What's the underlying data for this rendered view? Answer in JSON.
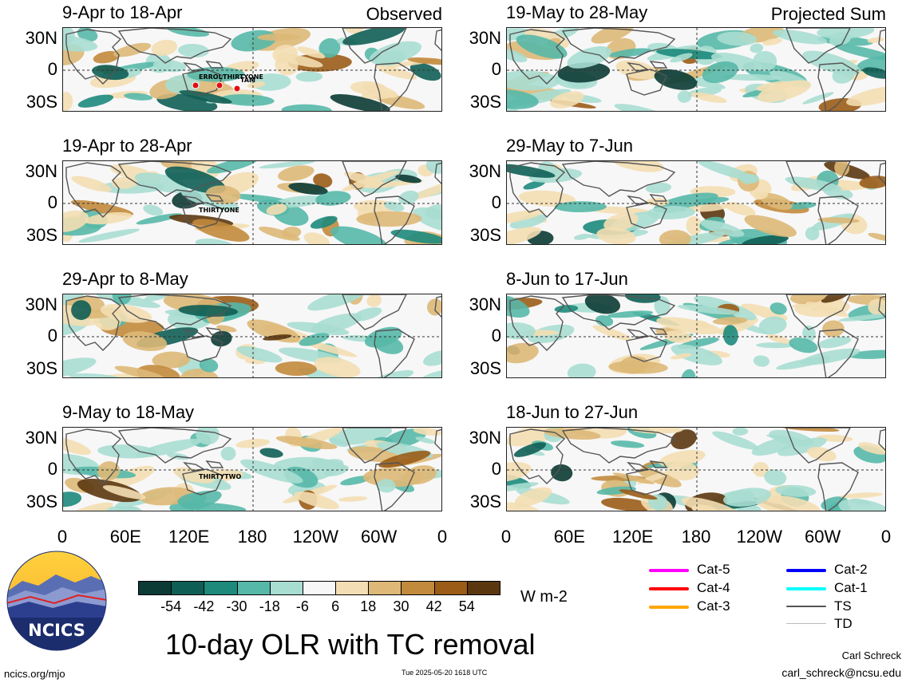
{
  "panels": [
    {
      "title": "9-Apr to 18-Apr",
      "tag": "Observed",
      "storms": [
        "ERROL",
        "THIRTYONE",
        "TAM"
      ]
    },
    {
      "title": "19-May to 28-May",
      "tag": "Projected Sum",
      "storms": []
    },
    {
      "title": "19-Apr to 28-Apr",
      "tag": "",
      "storms": [
        "THIRTYONE"
      ]
    },
    {
      "title": "29-May to 7-Jun",
      "tag": "",
      "storms": []
    },
    {
      "title": "29-Apr to 8-May",
      "tag": "",
      "storms": []
    },
    {
      "title": "8-Jun to 17-Jun",
      "tag": "",
      "storms": []
    },
    {
      "title": "9-May to 18-May",
      "tag": "",
      "storms": [
        "THIRTYTWO"
      ]
    },
    {
      "title": "18-Jun to 27-Jun",
      "tag": "",
      "storms": []
    }
  ],
  "lat_labels": [
    "30N",
    "0",
    "30S"
  ],
  "lon_labels": [
    "0",
    "60E",
    "120E",
    "180",
    "120W",
    "60W",
    "0"
  ],
  "colorbar": {
    "labels": [
      "-54",
      "-42",
      "-30",
      "-18",
      "-6",
      "6",
      "18",
      "30",
      "42",
      "54"
    ],
    "colors": [
      "#0b3b34",
      "#0f5e55",
      "#1d8a7c",
      "#56b8a8",
      "#a8ddd2",
      "#f7f7f7",
      "#f3deb3",
      "#ddb877",
      "#c28a3c",
      "#9a5c17",
      "#5b3710"
    ],
    "units": "W m-2"
  },
  "legend": [
    {
      "label": "Cat-5",
      "color": "#ff00ff"
    },
    {
      "label": "Cat-4",
      "color": "#ff0000"
    },
    {
      "label": "Cat-3",
      "color": "#ffa500"
    },
    {
      "label": "Cat-2",
      "color": "#0000ff"
    },
    {
      "label": "Cat-1",
      "color": "#00ffff"
    },
    {
      "label": "TS",
      "color": "#555555"
    },
    {
      "label": "TD",
      "color": "#bbbbbb"
    }
  ],
  "logo": {
    "text": "NCICS"
  },
  "title": "10-day OLR with TC removal",
  "footer": {
    "url": "ncics.org/mjo",
    "timestamp": "Tue 2025-05-20 1618 UTC",
    "author": "Carl Schreck",
    "email": "carl_schreck@ncsu.edu"
  }
}
